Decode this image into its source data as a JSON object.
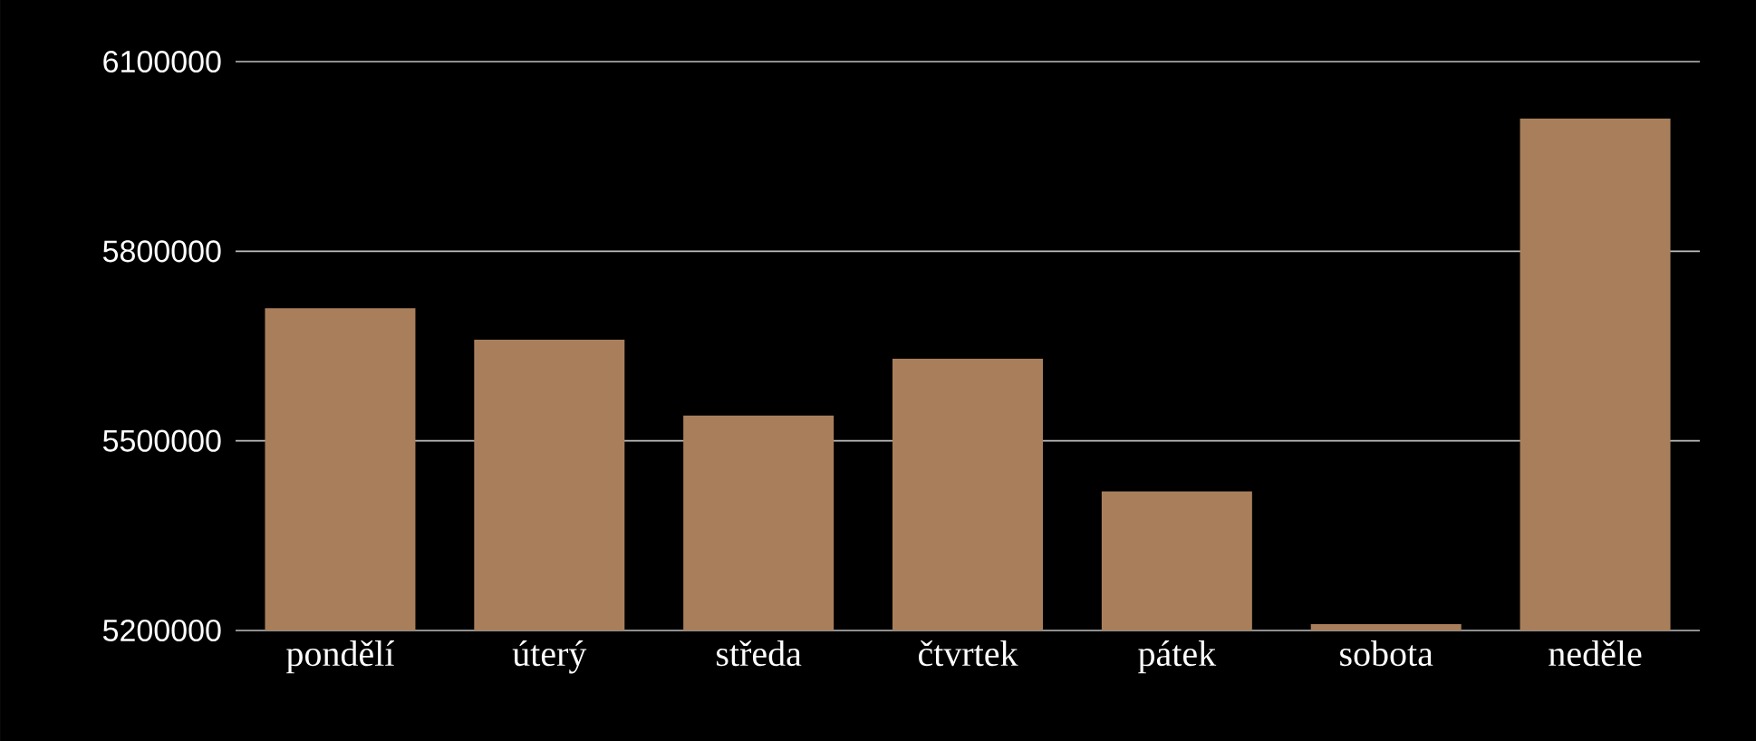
{
  "chart_data": {
    "type": "bar",
    "categories": [
      "pondělí",
      "úterý",
      "středa",
      "čtvrtek",
      "pátek",
      "sobota",
      "neděle"
    ],
    "values": [
      5710000,
      5660000,
      5540000,
      5630000,
      5420000,
      5210000,
      6010000
    ],
    "color": "#a97f5b",
    "ylim": [
      5200000,
      6100000
    ],
    "yticks": [
      5200000,
      5500000,
      5800000,
      6100000
    ],
    "grid": "y"
  }
}
